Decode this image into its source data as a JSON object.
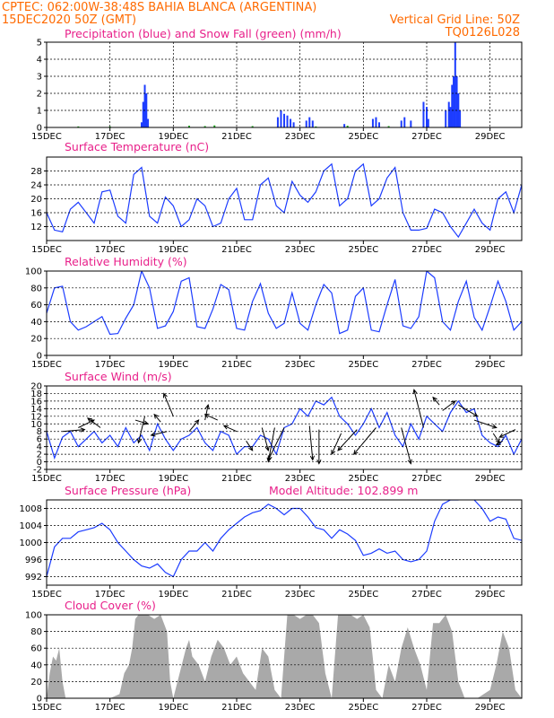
{
  "header": {
    "line1_left": "CPTEC:   062:00W-38:48S   BAHIA BLANCA (ARGENTINA)",
    "line2_left": "15DEC2020 50Z (GMT)",
    "line2_right": "Vertical Grid Line: 50Z",
    "line3_right": "TQ0126L028"
  },
  "colors": {
    "header": "#ff6a00",
    "titles": "#e8208a",
    "line": "#1c3cff",
    "snow": "#17a817",
    "cloud": "#a9a9a9"
  },
  "chart_data": [
    {
      "id": "precip",
      "type": "bar",
      "title": "Precipitation (blue) and Snow Fall (green) (mm/h)",
      "x_ticks": [
        "15DEC",
        "17DEC",
        "19DEC",
        "21DEC",
        "23DEC",
        "25DEC",
        "27DEC",
        "29DEC"
      ],
      "x_range": [
        0,
        15
      ],
      "ylim": [
        0,
        5
      ],
      "y_ticks": [
        0,
        1,
        2,
        3,
        4,
        5
      ],
      "vertical_grid_days": [
        2,
        4,
        6,
        8,
        10,
        12,
        14
      ],
      "series": [
        {
          "color": "#1c3cff",
          "points": [
            [
              3.0,
              0.3
            ],
            [
              3.05,
              1.5
            ],
            [
              3.1,
              2.5
            ],
            [
              3.15,
              2.0
            ],
            [
              3.2,
              0.5
            ],
            [
              7.3,
              0.6
            ],
            [
              7.4,
              1.0
            ],
            [
              7.5,
              0.8
            ],
            [
              7.6,
              0.7
            ],
            [
              7.7,
              0.5
            ],
            [
              7.8,
              0.3
            ],
            [
              8.2,
              0.4
            ],
            [
              8.3,
              0.6
            ],
            [
              8.4,
              0.4
            ],
            [
              9.4,
              0.2
            ],
            [
              10.3,
              0.5
            ],
            [
              10.4,
              0.6
            ],
            [
              10.5,
              0.3
            ],
            [
              11.2,
              0.4
            ],
            [
              11.3,
              0.6
            ],
            [
              11.5,
              0.4
            ],
            [
              11.9,
              1.5
            ],
            [
              12.0,
              1.2
            ],
            [
              12.05,
              0.5
            ],
            [
              12.6,
              1.0
            ],
            [
              12.7,
              1.5
            ],
            [
              12.75,
              1.2
            ],
            [
              12.8,
              2.5
            ],
            [
              12.85,
              3.0
            ],
            [
              12.9,
              5.0
            ],
            [
              12.95,
              3.0
            ],
            [
              13.0,
              2.0
            ],
            [
              13.05,
              1.0
            ]
          ]
        },
        {
          "color": "#17a817",
          "points": [
            [
              1.0,
              0.06
            ],
            [
              2.0,
              0.06
            ],
            [
              4.5,
              0.1
            ],
            [
              5.0,
              0.08
            ],
            [
              5.3,
              0.12
            ],
            [
              6.5,
              0.08
            ],
            [
              8.5,
              0.06
            ],
            [
              9.5,
              0.1
            ],
            [
              10.8,
              0.08
            ]
          ]
        }
      ]
    },
    {
      "id": "temperature",
      "type": "line",
      "title": "Surface Temperature (nC)",
      "x_ticks": [
        "15DEC",
        "17DEC",
        "19DEC",
        "21DEC",
        "23DEC",
        "25DEC",
        "27DEC",
        "29DEC"
      ],
      "x_range": [
        0,
        15
      ],
      "ylim": [
        8,
        32
      ],
      "y_ticks": [
        12,
        16,
        20,
        24,
        28
      ],
      "x": [
        0.0,
        0.25,
        0.5,
        0.75,
        1.0,
        1.25,
        1.5,
        1.75,
        2.0,
        2.25,
        2.5,
        2.75,
        3.0,
        3.25,
        3.5,
        3.75,
        4.0,
        4.25,
        4.5,
        4.75,
        5.0,
        5.25,
        5.5,
        5.75,
        6.0,
        6.25,
        6.5,
        6.75,
        7.0,
        7.25,
        7.5,
        7.75,
        8.0,
        8.25,
        8.5,
        8.75,
        9.0,
        9.25,
        9.5,
        9.75,
        10.0,
        10.25,
        10.5,
        10.75,
        11.0,
        11.25,
        11.5,
        11.75,
        12.0,
        12.25,
        12.5,
        12.75,
        13.0,
        13.25,
        13.5,
        13.75,
        14.0,
        14.25,
        14.5,
        14.75,
        15.0
      ],
      "y": [
        16,
        11,
        10.5,
        17,
        19,
        16,
        13,
        22,
        22.5,
        15,
        13,
        27,
        29,
        15,
        13,
        20.5,
        18,
        12,
        14,
        20,
        18,
        12,
        13,
        20,
        23,
        14,
        14,
        24,
        26,
        18,
        16,
        25,
        21,
        19,
        22,
        28,
        30,
        18,
        20,
        28,
        30,
        18,
        20,
        26,
        29,
        16,
        11,
        11,
        11.5,
        17,
        16,
        12,
        9,
        13,
        17,
        13,
        11,
        20,
        22,
        16,
        24
      ]
    },
    {
      "id": "humidity",
      "type": "line",
      "title": "Relative Humidity (%)",
      "x_ticks": [
        "15DEC",
        "17DEC",
        "19DEC",
        "21DEC",
        "23DEC",
        "25DEC",
        "27DEC",
        "29DEC"
      ],
      "x_range": [
        0,
        15
      ],
      "ylim": [
        0,
        100
      ],
      "y_ticks": [
        0,
        20,
        40,
        60,
        80,
        100
      ],
      "x": [
        0.0,
        0.25,
        0.5,
        0.75,
        1.0,
        1.25,
        1.5,
        1.75,
        2.0,
        2.25,
        2.5,
        2.75,
        3.0,
        3.25,
        3.5,
        3.75,
        4.0,
        4.25,
        4.5,
        4.75,
        5.0,
        5.25,
        5.5,
        5.75,
        6.0,
        6.25,
        6.5,
        6.75,
        7.0,
        7.25,
        7.5,
        7.75,
        8.0,
        8.25,
        8.5,
        8.75,
        9.0,
        9.25,
        9.5,
        9.75,
        10.0,
        10.25,
        10.5,
        10.75,
        11.0,
        11.25,
        11.5,
        11.75,
        12.0,
        12.25,
        12.5,
        12.75,
        13.0,
        13.25,
        13.5,
        13.75,
        14.0,
        14.25,
        14.5,
        14.75,
        15.0
      ],
      "y": [
        50,
        80,
        82,
        40,
        30,
        34,
        40,
        46,
        25,
        26,
        44,
        60,
        100,
        80,
        32,
        35,
        52,
        88,
        92,
        34,
        32,
        55,
        84,
        78,
        32,
        30,
        64,
        85,
        50,
        32,
        38,
        74,
        38,
        30,
        60,
        84,
        74,
        26,
        30,
        70,
        80,
        30,
        28,
        60,
        90,
        35,
        32,
        46,
        100,
        92,
        40,
        30,
        64,
        88,
        45,
        30,
        58,
        88,
        64,
        30,
        40
      ]
    },
    {
      "id": "wind",
      "type": "line",
      "title": "Surface Wind (m/s)",
      "x_ticks": [
        "15DEC",
        "17DEC",
        "19DEC",
        "21DEC",
        "23DEC",
        "25DEC",
        "27DEC",
        "29DEC"
      ],
      "x_range": [
        0,
        15
      ],
      "ylim": [
        -2,
        20
      ],
      "y_ticks": [
        -2,
        0,
        2,
        4,
        6,
        8,
        10,
        12,
        14,
        16,
        18,
        20
      ],
      "x": [
        0.0,
        0.25,
        0.5,
        0.75,
        1.0,
        1.25,
        1.5,
        1.75,
        2.0,
        2.25,
        2.5,
        2.75,
        3.0,
        3.25,
        3.5,
        3.75,
        4.0,
        4.25,
        4.5,
        4.75,
        5.0,
        5.25,
        5.5,
        5.75,
        6.0,
        6.25,
        6.5,
        6.75,
        7.0,
        7.25,
        7.5,
        7.75,
        8.0,
        8.25,
        8.5,
        8.75,
        9.0,
        9.25,
        9.5,
        9.75,
        10.0,
        10.25,
        10.5,
        10.75,
        11.0,
        11.25,
        11.5,
        11.75,
        12.0,
        12.25,
        12.5,
        12.75,
        13.0,
        13.25,
        13.5,
        13.75,
        14.0,
        14.25,
        14.5,
        14.75,
        15.0
      ],
      "y": [
        8,
        1,
        6.5,
        8,
        4,
        6,
        8,
        5,
        7,
        4,
        9,
        5,
        7,
        3,
        10,
        6,
        3,
        6,
        7,
        9,
        5,
        3,
        8,
        7,
        2,
        4,
        4,
        7,
        6,
        2,
        9,
        10,
        14,
        12,
        16,
        15,
        17,
        12,
        10,
        7,
        10,
        14,
        9,
        13,
        7,
        4,
        10,
        6,
        12,
        10,
        8,
        13,
        16,
        13,
        14,
        7,
        5,
        4,
        7,
        2,
        6
      ],
      "arrows": [
        [
          0.5,
          8,
          1.2,
          8.5
        ],
        [
          1.0,
          9,
          1.5,
          11
        ],
        [
          1.7,
          9,
          1.3,
          11.5
        ],
        [
          2.8,
          11,
          3.2,
          10
        ],
        [
          3.1,
          12,
          2.9,
          5
        ],
        [
          3.6,
          10.5,
          3.4,
          12.5
        ],
        [
          3.8,
          8,
          3.3,
          7
        ],
        [
          4.0,
          12,
          3.7,
          18
        ],
        [
          4.5,
          8,
          4.8,
          11
        ],
        [
          5.0,
          11,
          5.1,
          15
        ],
        [
          5.4,
          11,
          5.0,
          12.5
        ],
        [
          6.0,
          8,
          5.6,
          9.5
        ],
        [
          6.3,
          5.5,
          6.5,
          3
        ],
        [
          6.8,
          9,
          7.0,
          3
        ],
        [
          7.2,
          9,
          7.0,
          0
        ],
        [
          7.5,
          9,
          7.0,
          0.5
        ],
        [
          8.3,
          9.5,
          8.4,
          0.5
        ],
        [
          8.6,
          8.5,
          8.6,
          -0.5
        ],
        [
          9.3,
          7.5,
          9.0,
          2
        ],
        [
          9.8,
          8.5,
          9.2,
          3
        ],
        [
          10.4,
          9,
          9.7,
          2
        ],
        [
          11.2,
          9,
          11.5,
          -0.5
        ],
        [
          11.9,
          9,
          11.6,
          19
        ],
        [
          12.4,
          15,
          12.2,
          17
        ],
        [
          12.5,
          13.5,
          12.9,
          16
        ],
        [
          13.0,
          15,
          13.6,
          12
        ],
        [
          13.5,
          11,
          14.2,
          9
        ],
        [
          14.1,
          7.5,
          14.3,
          5
        ],
        [
          14.4,
          5.5,
          14.2,
          4.5
        ],
        [
          14.8,
          8.5,
          14.3,
          6.5
        ]
      ]
    },
    {
      "id": "pressure",
      "type": "line",
      "title": "Surface Pressure (hPa)",
      "title_right": "Model Altitude: 102.899 m",
      "x_ticks": [
        "15DEC",
        "17DEC",
        "19DEC",
        "21DEC",
        "23DEC",
        "25DEC",
        "27DEC",
        "29DEC"
      ],
      "x_range": [
        0,
        15
      ],
      "ylim": [
        990,
        1010
      ],
      "y_ticks": [
        992,
        996,
        1000,
        1004,
        1008
      ],
      "x": [
        0.0,
        0.25,
        0.5,
        0.75,
        1.0,
        1.25,
        1.5,
        1.75,
        2.0,
        2.25,
        2.5,
        2.75,
        3.0,
        3.25,
        3.5,
        3.75,
        4.0,
        4.25,
        4.5,
        4.75,
        5.0,
        5.25,
        5.5,
        5.75,
        6.0,
        6.25,
        6.5,
        6.75,
        7.0,
        7.25,
        7.5,
        7.75,
        8.0,
        8.25,
        8.5,
        8.75,
        9.0,
        9.25,
        9.5,
        9.75,
        10.0,
        10.25,
        10.5,
        10.75,
        11.0,
        11.25,
        11.5,
        11.75,
        12.0,
        12.25,
        12.5,
        12.75,
        13.0,
        13.25,
        13.5,
        13.75,
        14.0,
        14.25,
        14.5,
        14.75,
        15.0
      ],
      "y": [
        992,
        999,
        1001,
        1001,
        1002.5,
        1003,
        1003.5,
        1004.5,
        1003,
        1000,
        998,
        996,
        994.5,
        994,
        995,
        993,
        992,
        996,
        998,
        998,
        1000,
        998,
        1001,
        1003,
        1004.5,
        1006,
        1007,
        1007.5,
        1009,
        1008,
        1006.5,
        1008,
        1008,
        1006,
        1003.5,
        1003,
        1001,
        1003,
        1002,
        1000.5,
        997,
        997.5,
        998.5,
        997.5,
        998,
        996,
        995.5,
        996,
        998,
        1005,
        1009,
        1010,
        1010,
        1011,
        1010,
        1008,
        1005,
        1006,
        1005.5,
        1001,
        1000.5
      ]
    },
    {
      "id": "cloud",
      "type": "area",
      "title": "Cloud Cover (%)",
      "x_ticks": [
        "15DEC",
        "17DEC",
        "19DEC",
        "21DEC",
        "23DEC",
        "25DEC",
        "27DEC",
        "29DEC"
      ],
      "x_range": [
        0,
        15
      ],
      "ylim": [
        0,
        100
      ],
      "y_ticks": [
        0,
        20,
        40,
        60,
        80,
        100
      ],
      "x": [
        0.0,
        0.1,
        0.2,
        0.3,
        0.4,
        0.5,
        0.6,
        1.0,
        1.5,
        2.0,
        2.3,
        2.45,
        2.6,
        2.7,
        2.8,
        2.9,
        3.0,
        3.2,
        3.4,
        3.6,
        3.8,
        3.9,
        4.0,
        4.2,
        4.4,
        4.5,
        4.6,
        4.8,
        5.0,
        5.2,
        5.4,
        5.6,
        5.8,
        6.0,
        6.2,
        6.4,
        6.6,
        6.8,
        7.0,
        7.2,
        7.4,
        7.6,
        7.8,
        8.0,
        8.2,
        8.4,
        8.6,
        8.8,
        9.0,
        9.2,
        9.4,
        9.6,
        9.8,
        10.0,
        10.2,
        10.4,
        10.6,
        10.8,
        11.0,
        11.2,
        11.4,
        11.6,
        11.8,
        12.0,
        12.2,
        12.4,
        12.6,
        12.8,
        13.0,
        13.2,
        13.4,
        13.6,
        13.8,
        14.0,
        14.2,
        14.4,
        14.6,
        14.8,
        15.0
      ],
      "y": [
        0,
        30,
        50,
        45,
        60,
        20,
        0,
        0,
        0,
        0,
        5,
        30,
        40,
        60,
        95,
        100,
        100,
        100,
        95,
        100,
        80,
        20,
        0,
        30,
        60,
        70,
        50,
        40,
        20,
        50,
        70,
        60,
        40,
        50,
        30,
        20,
        10,
        60,
        50,
        10,
        0,
        100,
        100,
        95,
        100,
        100,
        90,
        30,
        0,
        100,
        100,
        100,
        95,
        100,
        85,
        10,
        0,
        40,
        20,
        60,
        85,
        60,
        40,
        10,
        90,
        90,
        100,
        80,
        20,
        0,
        0,
        0,
        5,
        10,
        40,
        80,
        60,
        10,
        0
      ]
    }
  ]
}
